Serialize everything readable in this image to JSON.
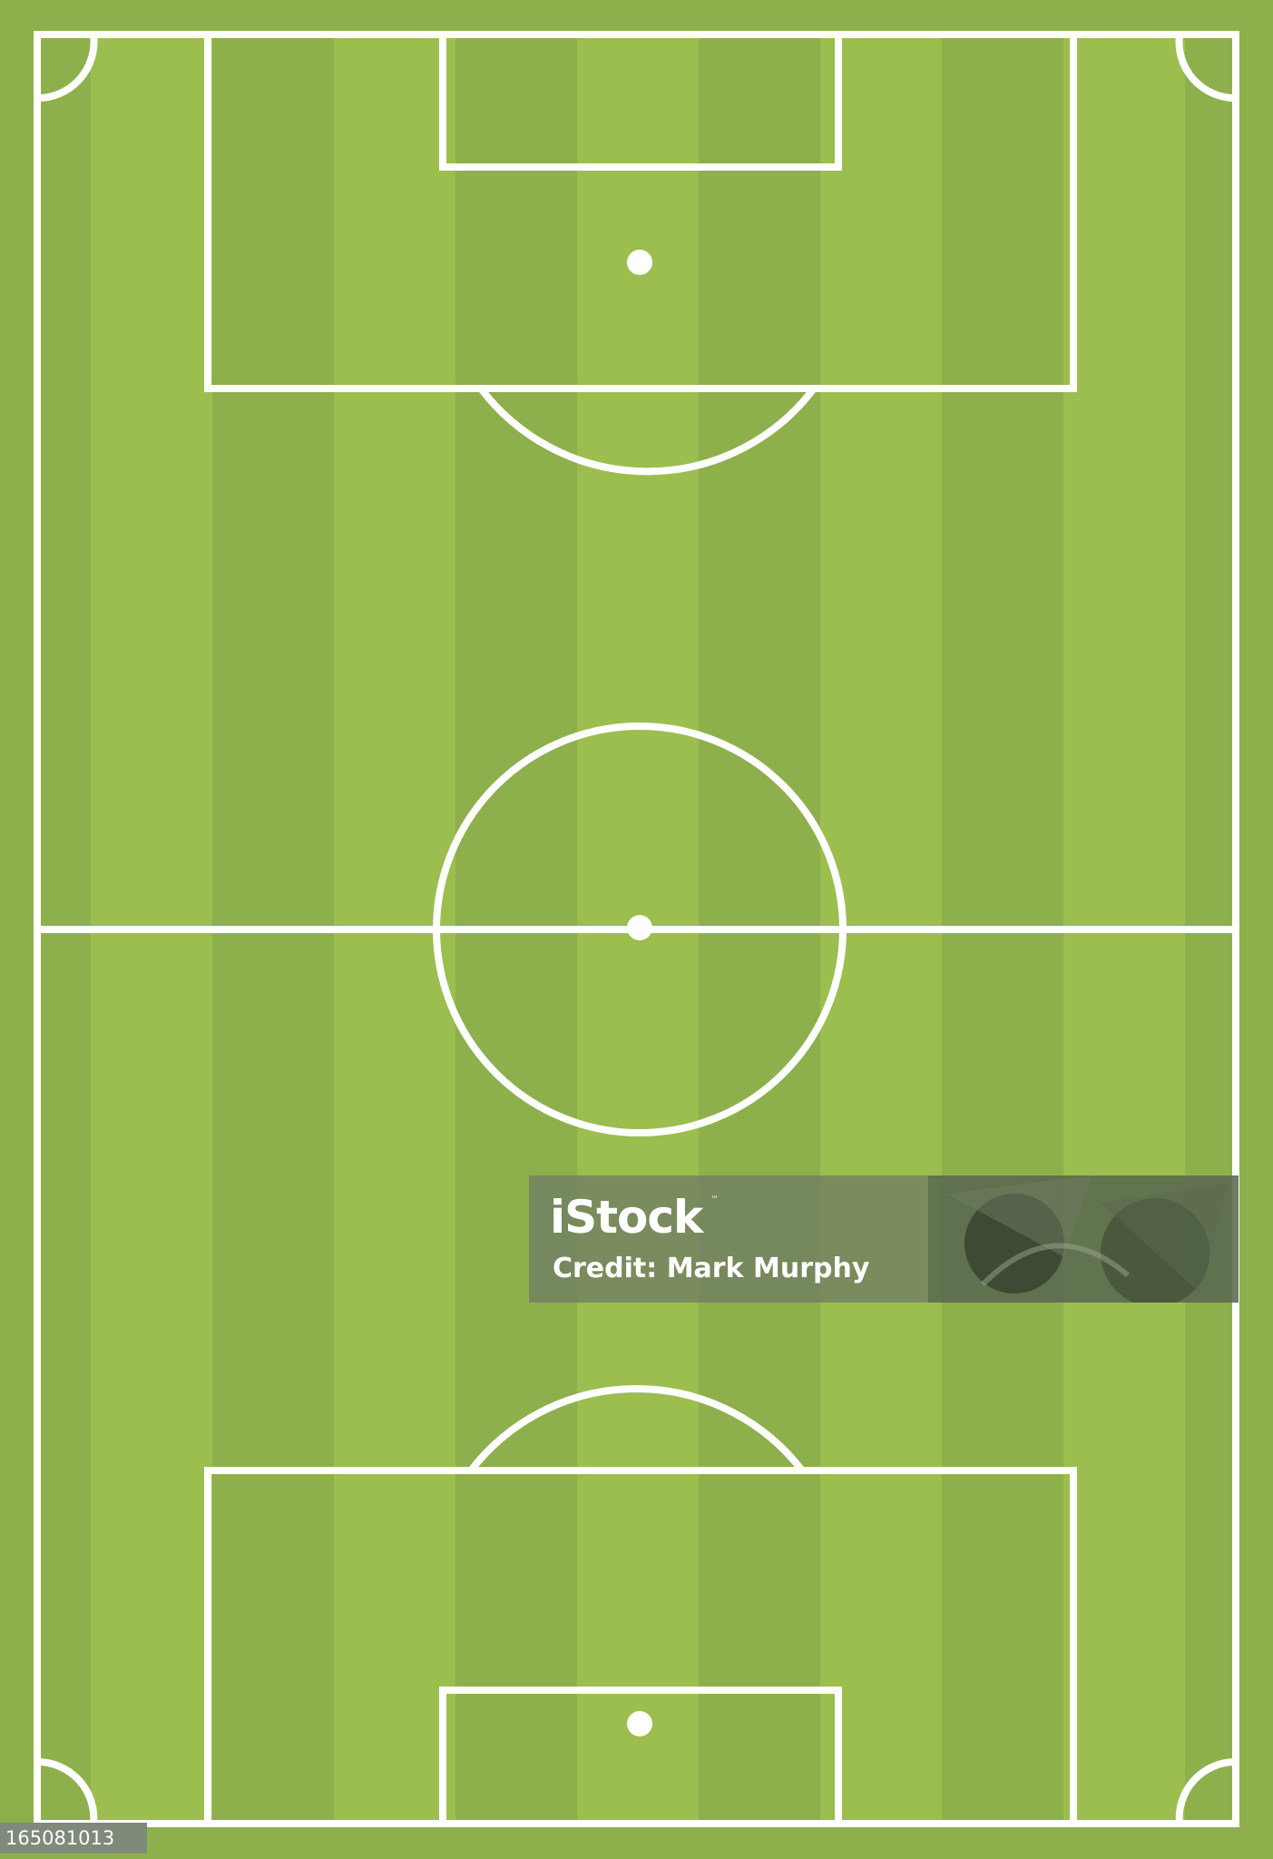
{
  "colors": {
    "grass_light": "#9bbe4f",
    "grass_dark": "#8db04c",
    "line": "#ffffff"
  },
  "watermark": {
    "logo": "iStock",
    "trademark": "™",
    "credit": "Credit: Mark Murphy"
  },
  "image_id": "165081013"
}
